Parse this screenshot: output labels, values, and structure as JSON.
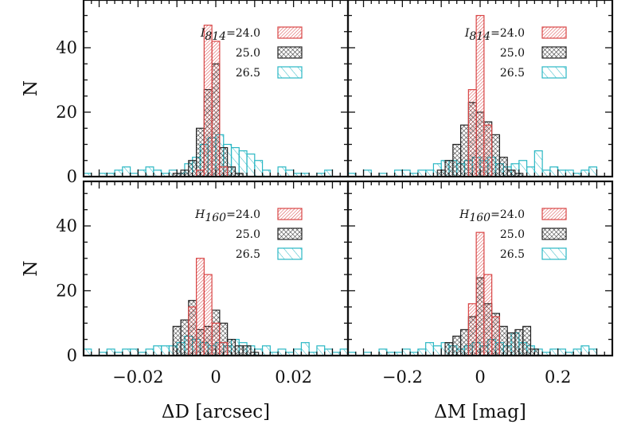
{
  "chart_data": [
    {
      "type": "bar",
      "panel": "top-left",
      "xlim": [
        -0.034,
        0.034
      ],
      "ylim": [
        0,
        55
      ],
      "bin_width": 0.002,
      "band": "I",
      "band_sub": "814",
      "legend_labels": [
        "=24.0",
        "25.0",
        "26.5"
      ],
      "series": [
        {
          "name": "24.0",
          "color": "#d94545",
          "x": [
            -0.004,
            -0.002,
            0.0,
            0.002
          ],
          "values": [
            2,
            47,
            42,
            3
          ]
        },
        {
          "name": "25.0",
          "color": "#222222",
          "x": [
            -0.01,
            -0.008,
            -0.006,
            -0.004,
            -0.002,
            0.0,
            0.002,
            0.004,
            0.006
          ],
          "values": [
            1,
            2,
            5,
            15,
            27,
            35,
            9,
            3,
            1
          ]
        },
        {
          "name": "26.5",
          "color": "#2ab7c4",
          "x": [
            -0.033,
            -0.031,
            -0.029,
            -0.027,
            -0.025,
            -0.023,
            -0.021,
            -0.019,
            -0.017,
            -0.015,
            -0.013,
            -0.011,
            -0.009,
            -0.007,
            -0.005,
            -0.003,
            -0.001,
            0.001,
            0.003,
            0.005,
            0.007,
            0.009,
            0.011,
            0.013,
            0.015,
            0.017,
            0.019,
            0.021,
            0.023,
            0.025,
            0.027,
            0.029,
            0.031
          ],
          "values": [
            1,
            0,
            1,
            1,
            2,
            3,
            1,
            2,
            3,
            2,
            1,
            2,
            1,
            4,
            6,
            10,
            12,
            13,
            10,
            9,
            8,
            7,
            5,
            2,
            0,
            3,
            2,
            1,
            1,
            0,
            1,
            2,
            0
          ]
        }
      ],
      "yticks": [
        0,
        20,
        40
      ],
      "ylabel": "N"
    },
    {
      "type": "bar",
      "panel": "top-right",
      "xlim": [
        -0.34,
        0.34
      ],
      "ylim": [
        0,
        55
      ],
      "bin_width": 0.02,
      "band": "I",
      "band_sub": "814",
      "legend_labels": [
        "=24.0",
        "25.0",
        "26.5"
      ],
      "series": [
        {
          "name": "24.0",
          "color": "#d94545",
          "x": [
            -0.02,
            0.0,
            0.02
          ],
          "values": [
            27,
            50,
            16
          ]
        },
        {
          "name": "25.0",
          "color": "#222222",
          "x": [
            -0.1,
            -0.08,
            -0.06,
            -0.04,
            -0.02,
            0.0,
            0.02,
            0.04,
            0.06,
            0.08,
            0.1
          ],
          "values": [
            2,
            5,
            10,
            16,
            23,
            20,
            17,
            13,
            6,
            2,
            1
          ]
        },
        {
          "name": "26.5",
          "color": "#2ab7c4",
          "x": [
            -0.33,
            -0.31,
            -0.29,
            -0.27,
            -0.25,
            -0.23,
            -0.21,
            -0.19,
            -0.17,
            -0.15,
            -0.13,
            -0.11,
            -0.09,
            -0.07,
            -0.05,
            -0.03,
            -0.01,
            0.01,
            0.03,
            0.05,
            0.07,
            0.09,
            0.11,
            0.13,
            0.15,
            0.17,
            0.19,
            0.21,
            0.23,
            0.25,
            0.27,
            0.29
          ],
          "values": [
            1,
            0,
            2,
            0,
            1,
            0,
            2,
            2,
            1,
            2,
            2,
            4,
            5,
            5,
            4,
            5,
            6,
            5,
            6,
            4,
            3,
            4,
            5,
            3,
            8,
            2,
            3,
            2,
            2,
            1,
            2,
            3
          ]
        }
      ],
      "yticks": [
        0,
        20,
        40
      ],
      "ylabel": ""
    },
    {
      "type": "bar",
      "panel": "bottom-left",
      "xlim": [
        -0.034,
        0.034
      ],
      "ylim": [
        0,
        55
      ],
      "bin_width": 0.002,
      "band": "H",
      "band_sub": "160",
      "legend_labels": [
        "=24.0",
        "25.0",
        "26.5"
      ],
      "series": [
        {
          "name": "24.0",
          "color": "#d94545",
          "x": [
            -0.006,
            -0.004,
            -0.002,
            0.0,
            0.002
          ],
          "values": [
            15,
            30,
            25,
            10,
            4
          ]
        },
        {
          "name": "25.0",
          "color": "#222222",
          "x": [
            -0.01,
            -0.008,
            -0.006,
            -0.004,
            -0.002,
            0.0,
            0.002,
            0.004,
            0.006,
            0.008,
            0.01
          ],
          "values": [
            9,
            11,
            17,
            8,
            9,
            14,
            10,
            5,
            3,
            3,
            1
          ]
        },
        {
          "name": "26.5",
          "color": "#2ab7c4",
          "x": [
            -0.033,
            -0.031,
            -0.029,
            -0.027,
            -0.025,
            -0.023,
            -0.021,
            -0.019,
            -0.017,
            -0.015,
            -0.013,
            -0.011,
            -0.009,
            -0.007,
            -0.005,
            -0.003,
            -0.001,
            0.001,
            0.003,
            0.005,
            0.007,
            0.009,
            0.011,
            0.013,
            0.015,
            0.017,
            0.019,
            0.021,
            0.023,
            0.025,
            0.027,
            0.029,
            0.031,
            0.033
          ],
          "values": [
            2,
            0,
            1,
            2,
            1,
            2,
            2,
            1,
            2,
            3,
            3,
            3,
            4,
            6,
            5,
            4,
            3,
            4,
            3,
            5,
            4,
            3,
            2,
            3,
            1,
            2,
            1,
            2,
            4,
            1,
            3,
            2,
            1,
            2
          ]
        }
      ],
      "yticks": [
        0,
        20,
        40
      ],
      "ylabel": "N",
      "xticks": [
        -0.02,
        0,
        0.02
      ],
      "xtick_labels": [
        "−0.02",
        "0",
        "0.02"
      ],
      "xlabel": "ΔD [arcsec]"
    },
    {
      "type": "bar",
      "panel": "bottom-right",
      "xlim": [
        -0.34,
        0.34
      ],
      "ylim": [
        0,
        55
      ],
      "bin_width": 0.02,
      "band": "H",
      "band_sub": "160",
      "legend_labels": [
        "=24.0",
        "25.0",
        "26.5"
      ],
      "series": [
        {
          "name": "24.0",
          "color": "#d94545",
          "x": [
            -0.02,
            0.0,
            0.02,
            0.04
          ],
          "values": [
            16,
            38,
            25,
            12
          ]
        },
        {
          "name": "25.0",
          "color": "#222222",
          "x": [
            -0.08,
            -0.06,
            -0.04,
            -0.02,
            0.0,
            0.02,
            0.04,
            0.06,
            0.08,
            0.1,
            0.12,
            0.14
          ],
          "values": [
            4,
            6,
            8,
            12,
            24,
            16,
            13,
            9,
            7,
            8,
            9,
            2
          ]
        },
        {
          "name": "26.5",
          "color": "#2ab7c4",
          "x": [
            -0.33,
            -0.31,
            -0.29,
            -0.27,
            -0.25,
            -0.23,
            -0.21,
            -0.19,
            -0.17,
            -0.15,
            -0.13,
            -0.11,
            -0.09,
            -0.07,
            -0.05,
            -0.03,
            -0.01,
            0.01,
            0.03,
            0.05,
            0.07,
            0.09,
            0.11,
            0.13,
            0.15,
            0.17,
            0.19,
            0.21,
            0.23,
            0.25,
            0.27,
            0.29
          ],
          "values": [
            1,
            0,
            1,
            0,
            2,
            1,
            1,
            2,
            1,
            2,
            4,
            3,
            4,
            3,
            2,
            3,
            4,
            3,
            5,
            4,
            3,
            7,
            4,
            3,
            2,
            1,
            2,
            2,
            1,
            2,
            3,
            2
          ]
        }
      ],
      "yticks": [
        0,
        20,
        40
      ],
      "ylabel": "",
      "xticks": [
        -0.2,
        0,
        0.2
      ],
      "xtick_labels": [
        "−0.2",
        "0",
        "0.2"
      ],
      "xlabel": "ΔM [mag]"
    }
  ]
}
